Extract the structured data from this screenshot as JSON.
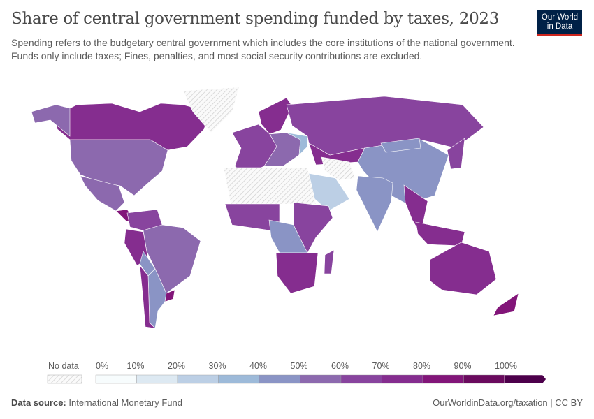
{
  "header": {
    "title": "Share of central government spending funded by taxes, 2023",
    "subtitle": "Spending refers to the budgetary central government which includes the core institutions of the national government. Funds only include taxes; Fines, penalties, and most social security contributions are excluded.",
    "logo": "Our World in Data"
  },
  "legend": {
    "no_data_label": "No data",
    "no_data_color": "#e0e0e0",
    "ticks": [
      "0%",
      "10%",
      "20%",
      "30%",
      "40%",
      "50%",
      "60%",
      "70%",
      "80%",
      "90%",
      "100%"
    ],
    "bin_colors": [
      "#f7fcfd",
      "#dde9f2",
      "#bccfe5",
      "#9dbad9",
      "#8a94c5",
      "#8c69ae",
      "#88449e",
      "#852d8f",
      "#821579",
      "#6a0a5e",
      "#4d004b"
    ]
  },
  "chart_data": {
    "type": "choropleth",
    "year": 2023,
    "unit": "%",
    "regions": [
      {
        "name": "Canada",
        "value": 75
      },
      {
        "name": "United States",
        "value": 58
      },
      {
        "name": "Alaska",
        "value": 58
      },
      {
        "name": "Mexico",
        "value": 55
      },
      {
        "name": "Central America",
        "value": 85
      },
      {
        "name": "Greenland",
        "value": null
      },
      {
        "name": "Colombia/Venezuela",
        "value": 60
      },
      {
        "name": "Brazil",
        "value": 55
      },
      {
        "name": "Peru",
        "value": 70
      },
      {
        "name": "Bolivia",
        "value": 40
      },
      {
        "name": "Argentina",
        "value": 40
      },
      {
        "name": "Chile",
        "value": 70
      },
      {
        "name": "Uruguay",
        "value": 80
      },
      {
        "name": "Scandinavia",
        "value": 75
      },
      {
        "name": "Western Europe",
        "value": 62
      },
      {
        "name": "Eastern Europe",
        "value": 58
      },
      {
        "name": "Ukraine",
        "value": 35
      },
      {
        "name": "Russia",
        "value": 68
      },
      {
        "name": "Kazakhstan",
        "value": 72
      },
      {
        "name": "China",
        "value": 45
      },
      {
        "name": "Mongolia",
        "value": 42
      },
      {
        "name": "India",
        "value": 45
      },
      {
        "name": "Saudi Arabia",
        "value": 25
      },
      {
        "name": "Iran",
        "value": null
      },
      {
        "name": "North Africa",
        "value": null
      },
      {
        "name": "West Africa",
        "value": 62
      },
      {
        "name": "Central Africa",
        "value": 45
      },
      {
        "name": "East Africa",
        "value": 65
      },
      {
        "name": "Southern Africa",
        "value": 72
      },
      {
        "name": "Madagascar",
        "value": 65
      },
      {
        "name": "Southeast Asia",
        "value": 78
      },
      {
        "name": "Indonesia",
        "value": 70
      },
      {
        "name": "Japan",
        "value": 60
      },
      {
        "name": "Australia",
        "value": 78
      },
      {
        "name": "New Zealand",
        "value": 80
      }
    ]
  },
  "footer": {
    "source_label": "Data source:",
    "source": "International Monetary Fund",
    "link": "OurWorldinData.org/taxation | CC BY"
  }
}
